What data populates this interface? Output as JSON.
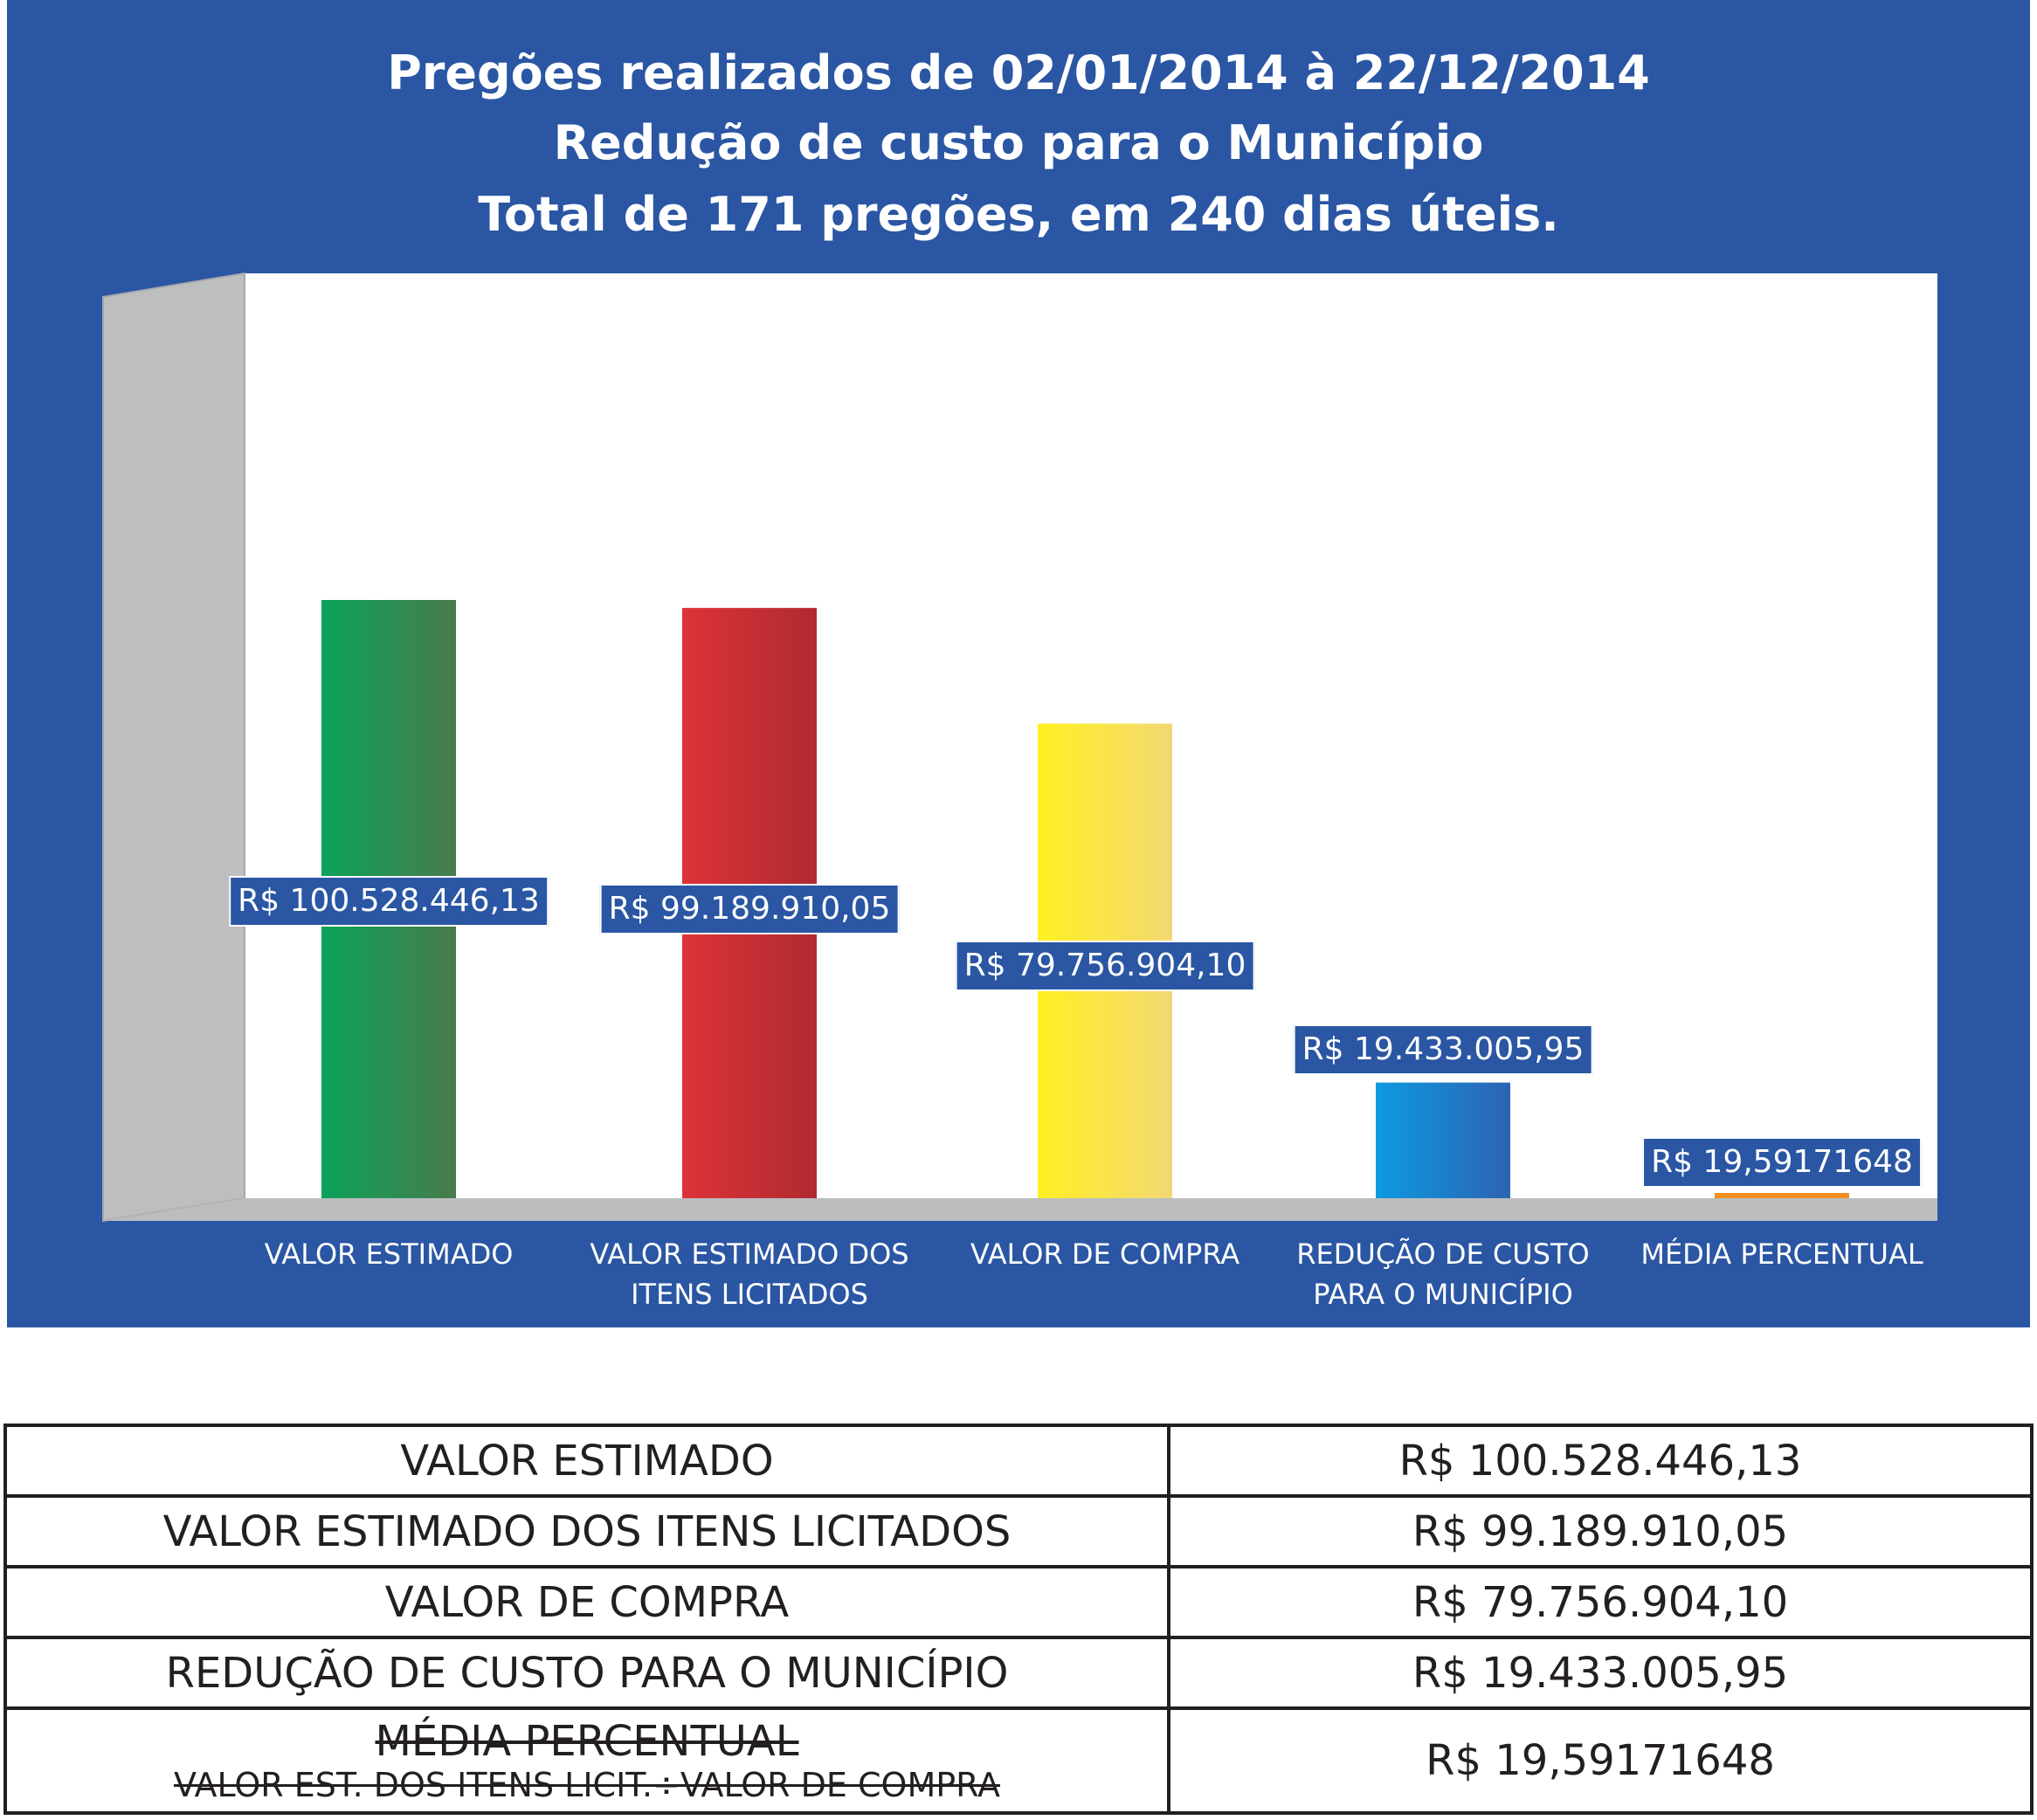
{
  "header": {
    "title_line1": "Pregões realizados de 02/01/2014 à 22/12/2014",
    "title_line2": "Redução de custo para o Município",
    "title_line3": "Total de 171 pregões, em 240 dias úteis."
  },
  "colors": {
    "panel": "#2a56a3",
    "bars": [
      [
        "#0aa35a",
        "#4a7a4c"
      ],
      [
        "#dc3338",
        "#b02a30"
      ],
      [
        "#fff021",
        "#f3d874"
      ],
      [
        "#0d9ae0",
        "#2d63b3"
      ],
      [
        "#f39020",
        "#f39020"
      ]
    ]
  },
  "chart_data": {
    "type": "bar",
    "categories": [
      "VALOR ESTIMADO",
      "VALOR ESTIMADO DOS ITENS LICITADOS",
      "VALOR DE COMPRA",
      "REDUÇÃO DE CUSTO PARA O MUNICÍPIO",
      "MÉDIA PERCENTUAL"
    ],
    "category_lines": [
      [
        "VALOR ESTIMADO"
      ],
      [
        "VALOR ESTIMADO DOS",
        "ITENS LICITADOS"
      ],
      [
        "VALOR DE COMPRA"
      ],
      [
        "REDUÇÃO DE CUSTO",
        "PARA O MUNICÍPIO"
      ],
      [
        "MÉDIA PERCENTUAL"
      ]
    ],
    "values": [
      100528446.13,
      99189910.05,
      79756904.1,
      19433005.95,
      19.59171648
    ],
    "data_labels": [
      "R$ 100.528.446,13",
      "R$ 99.189.910,05",
      "R$ 79.756.904,10",
      "R$ 19.433.005,95",
      "R$ 19,59171648"
    ],
    "title": "Pregões realizados de 02/01/2014 à 22/12/2014",
    "grid": false,
    "legend": "none"
  },
  "table": {
    "rows": [
      {
        "label": "VALOR ESTIMADO",
        "value": "R$ 100.528.446,13"
      },
      {
        "label": "VALOR ESTIMADO DOS ITENS LICITADOS",
        "value": "R$ 99.189.910,05"
      },
      {
        "label": "VALOR DE COMPRA",
        "value": "R$ 79.756.904,10"
      },
      {
        "label": "REDUÇÃO DE CUSTO PARA O MUNICÍPIO",
        "value": "R$ 19.433.005,95"
      }
    ],
    "last_row": {
      "label": "MÉDIA PERCENTUAL",
      "sublabel": "VALOR EST. DOS ITENS LICIT.÷VALOR DE COMPRA",
      "value": "R$ 19,59171648"
    }
  }
}
